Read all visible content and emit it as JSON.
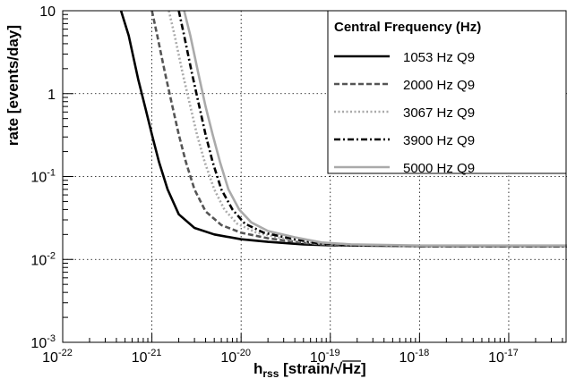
{
  "chart_data": {
    "type": "line",
    "xlabel": {
      "main": "h",
      "sub": "rss",
      "rest": " [strain/",
      "sqrt": "Hz",
      "end": "]"
    },
    "ylabel": "rate  [events/day]",
    "xscale": "log",
    "yscale": "log",
    "xlim": [
      1e-22,
      4.5e-17
    ],
    "ylim": [
      0.001,
      10
    ],
    "grid": true,
    "legend_position": "top-right",
    "legend_title": "Central Frequency (Hz)",
    "x_ticks": [
      {
        "value": 1e-22,
        "base": "10",
        "exp": "-22"
      },
      {
        "value": 1e-21,
        "base": "10",
        "exp": "-21"
      },
      {
        "value": 1e-20,
        "base": "10",
        "exp": "-20"
      },
      {
        "value": 1e-19,
        "base": "10",
        "exp": "-19"
      },
      {
        "value": 1e-18,
        "base": "10",
        "exp": "-18"
      },
      {
        "value": 1e-17,
        "base": "10",
        "exp": "-17"
      }
    ],
    "y_ticks": [
      {
        "value": 0.001,
        "base": "10",
        "exp": "-3"
      },
      {
        "value": 0.01,
        "base": "10",
        "exp": "-2"
      },
      {
        "value": 0.1,
        "base": "10",
        "exp": "-1"
      },
      {
        "value": 1,
        "base": "1",
        "exp": ""
      },
      {
        "value": 10,
        "base": "10",
        "exp": ""
      }
    ],
    "series": [
      {
        "name": "1053 Hz Q9",
        "color": "#000000",
        "style": "solid",
        "x": [
          4.5e-22,
          5.5e-22,
          7e-22,
          8.5e-22,
          1e-21,
          1.2e-21,
          1.5e-21,
          2e-21,
          3e-21,
          5e-21,
          1e-20,
          2e-20,
          5e-20,
          1e-19,
          1e-18,
          4.5e-17
        ],
        "y": [
          10,
          5,
          1.5,
          0.65,
          0.32,
          0.15,
          0.07,
          0.035,
          0.024,
          0.02,
          0.0175,
          0.0163,
          0.0152,
          0.0148,
          0.0145,
          0.0145
        ]
      },
      {
        "name": "2000 Hz Q9",
        "color": "#555555",
        "style": "dash",
        "x": [
          1e-21,
          1.15e-21,
          1.4e-21,
          1.7e-21,
          2e-21,
          2.4e-21,
          3e-21,
          4e-21,
          6e-21,
          1e-20,
          2e-20,
          5e-20,
          1e-19,
          1e-18,
          4.5e-17
        ],
        "y": [
          10,
          5,
          1.8,
          0.7,
          0.32,
          0.15,
          0.07,
          0.038,
          0.026,
          0.021,
          0.018,
          0.0158,
          0.015,
          0.0145,
          0.0145
        ]
      },
      {
        "name": "3067 Hz Q9",
        "color": "#aaaaaa",
        "style": "dot",
        "x": [
          1.55e-21,
          1.8e-21,
          2.2e-21,
          2.7e-21,
          3.2e-21,
          3.9e-21,
          5e-21,
          6.5e-21,
          9e-21,
          1.5e-20,
          3e-20,
          6e-20,
          1.2e-19,
          1e-18,
          4.5e-17
        ],
        "y": [
          10,
          5,
          1.8,
          0.7,
          0.32,
          0.15,
          0.07,
          0.04,
          0.027,
          0.021,
          0.0178,
          0.0158,
          0.015,
          0.0145,
          0.0145
        ]
      },
      {
        "name": "3900 Hz Q9",
        "color": "#000000",
        "style": "dashdot",
        "x": [
          2e-21,
          2.3e-21,
          2.8e-21,
          3.4e-21,
          4e-21,
          4.8e-21,
          6e-21,
          8e-21,
          1.1e-20,
          1.8e-20,
          3.5e-20,
          7e-20,
          1.5e-19,
          1e-18,
          4.5e-17
        ],
        "y": [
          10,
          5,
          1.8,
          0.7,
          0.32,
          0.15,
          0.07,
          0.04,
          0.027,
          0.021,
          0.018,
          0.0158,
          0.015,
          0.0145,
          0.0145
        ]
      },
      {
        "name": "5000 Hz Q9",
        "color": "#aaaaaa",
        "style": "solid",
        "x": [
          2.3e-21,
          2.7e-21,
          3.3e-21,
          4e-21,
          4.8e-21,
          5.8e-21,
          7.2e-21,
          9.5e-21,
          1.3e-20,
          2e-20,
          4e-20,
          8e-20,
          1.7e-19,
          1e-18,
          4.5e-17
        ],
        "y": [
          10,
          5,
          1.8,
          0.7,
          0.32,
          0.15,
          0.07,
          0.04,
          0.028,
          0.022,
          0.0185,
          0.016,
          0.0152,
          0.0147,
          0.0147
        ]
      }
    ]
  }
}
